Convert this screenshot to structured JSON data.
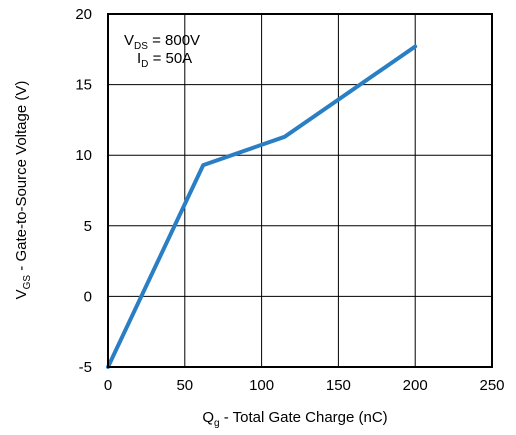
{
  "chart_data": {
    "type": "line",
    "title": "",
    "xlabel": {
      "main": "Q",
      "sub": "g",
      "rest": " - Total Gate Charge (nC)"
    },
    "ylabel": {
      "main": "V",
      "sub": "GS",
      "rest": " - Gate-to-Source Voltage (V)"
    },
    "xlim": [
      0,
      250
    ],
    "ylim": [
      -5,
      20
    ],
    "x_ticks": [
      0,
      50,
      100,
      150,
      200,
      250
    ],
    "y_ticks": [
      -5,
      0,
      5,
      10,
      15,
      20
    ],
    "x_tick_labels": [
      "0",
      "50",
      "100",
      "150",
      "200",
      "250"
    ],
    "y_tick_labels": [
      "-5",
      "0",
      "5",
      "10",
      "15",
      "20"
    ],
    "grid": true,
    "line_color": "#2a7fc4",
    "series": [
      {
        "x": [
          0,
          62,
          115,
          200
        ],
        "y": [
          -5,
          9.3,
          11.3,
          17.7
        ]
      }
    ],
    "annotations": [
      {
        "main": "V",
        "sub": "DS",
        "rest": " = 800V"
      },
      {
        "main": "I",
        "sub": "D",
        "rest": " = 50A"
      }
    ]
  }
}
